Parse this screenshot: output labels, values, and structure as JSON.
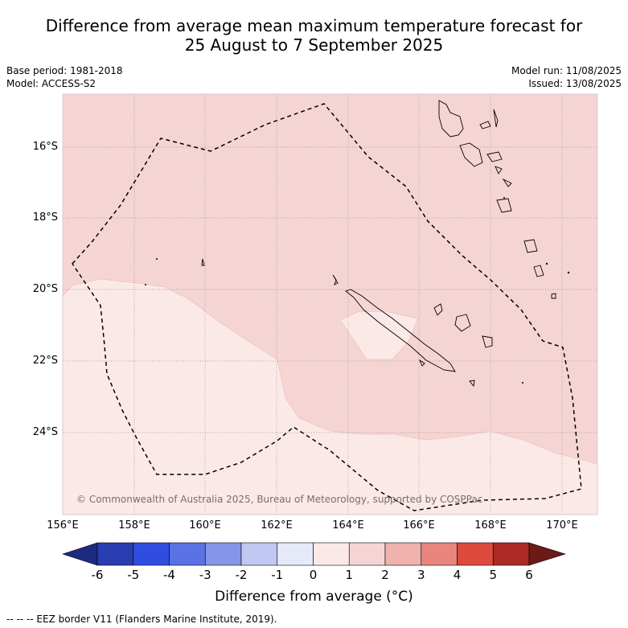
{
  "title_line1": "Difference from average mean maximum temperature forecast for",
  "title_line2": "25 August to 7 September 2025",
  "base_period": "Base period: 1981-2018",
  "model": "Model: ACCESS-S2",
  "model_run": "Model run: 11/08/2025",
  "issued": "Issued: 13/08/2025",
  "lat_labels": [
    "16°S",
    "18°S",
    "20°S",
    "22°S",
    "24°S"
  ],
  "lon_labels": [
    "156°E",
    "158°E",
    "160°E",
    "162°E",
    "164°E",
    "166°E",
    "168°E",
    "170°E"
  ],
  "copyright": "© Commonwealth of Australia 2025, Bureau of Meteorology, supported by COSPPac",
  "colorbar": {
    "title": "Difference from average (°C)",
    "ticks": [
      "-6",
      "-5",
      "-4",
      "-3",
      "-2",
      "-1",
      "0",
      "1",
      "2",
      "3",
      "4",
      "5",
      "6"
    ],
    "colors": [
      "#1c2a80",
      "#2a3db0",
      "#2f4ee0",
      "#5a72e4",
      "#8596e8",
      "#c1c8f1",
      "#e6eaf8",
      "#fbe9e8",
      "#f5d5d3",
      "#efb2ad",
      "#e8857e",
      "#dc4a3e",
      "#ac2a24",
      "#6b1a16"
    ]
  },
  "regions": {
    "band_0_1_color": "#fbe9e8",
    "band_1_2_color": "#f5d5d3"
  },
  "footnote": "--  --  -- EEZ border V11 (Flanders Marine Institute, 2019)."
}
